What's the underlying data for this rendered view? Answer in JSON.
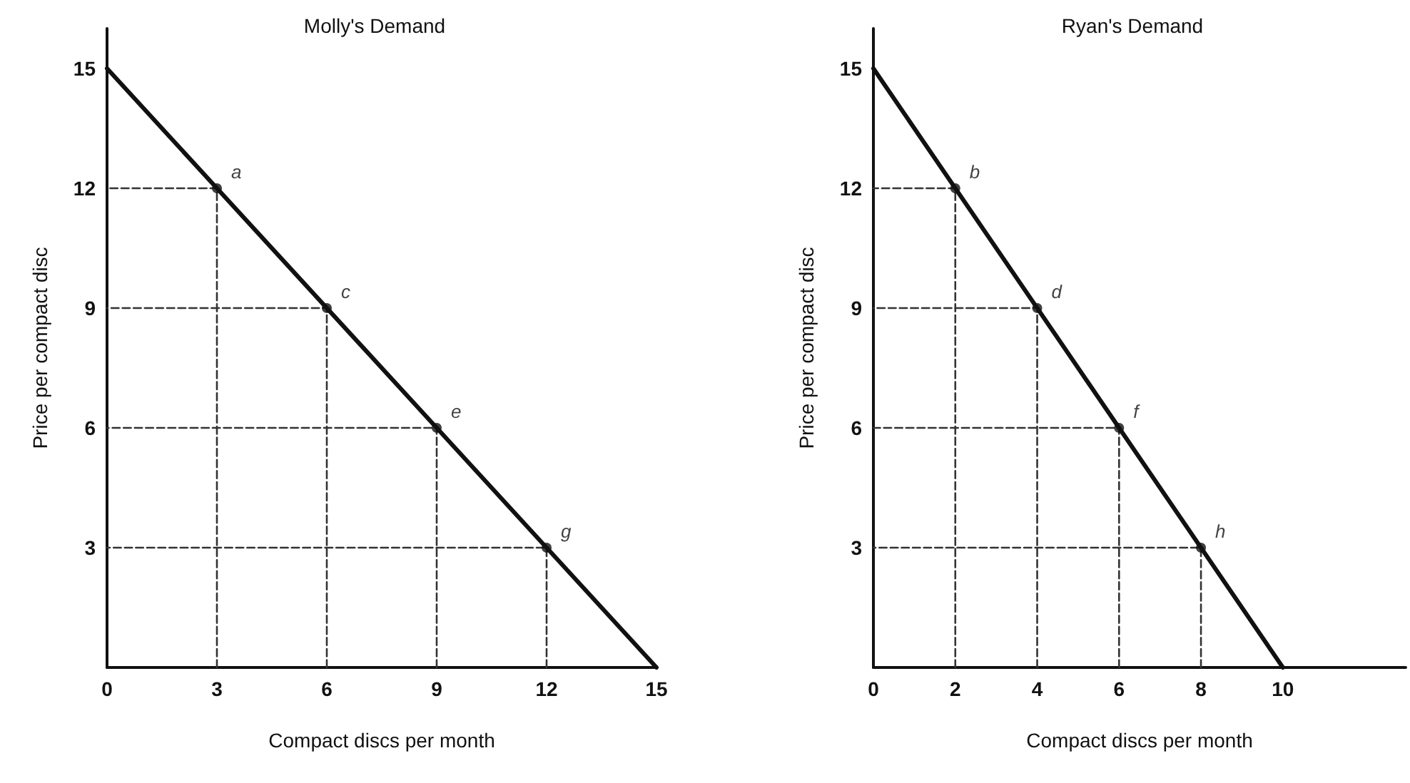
{
  "chart_data": [
    {
      "type": "line",
      "title": "Molly's Demand",
      "xlabel": "Compact discs per month",
      "ylabel": "Price per compact disc",
      "xlim": [
        0,
        15
      ],
      "ylim": [
        0,
        16
      ],
      "xticks": [
        0,
        3,
        6,
        9,
        12,
        15
      ],
      "yticks": [
        3,
        6,
        9,
        12,
        15
      ],
      "grid": false,
      "marker": "none",
      "series": [
        {
          "color": "#111111",
          "x": [
            0,
            15
          ],
          "values": [
            15,
            0
          ]
        },
        {
          "color": "#333333",
          "line_style": "dashed",
          "x": [
            3,
            3,
            0
          ],
          "values": [
            0,
            12,
            12
          ]
        },
        {
          "color": "#333333",
          "line_style": "dashed",
          "x": [
            6,
            6,
            0
          ],
          "values": [
            0,
            9,
            9
          ]
        },
        {
          "color": "#333333",
          "line_style": "dashed",
          "x": [
            9,
            9,
            0
          ],
          "values": [
            0,
            6,
            6
          ]
        },
        {
          "color": "#333333",
          "line_style": "dashed",
          "x": [
            12,
            12,
            0
          ],
          "values": [
            0,
            3,
            3
          ]
        },
        {
          "type": "scatter",
          "color": "#111111",
          "marker": "circle",
          "x": [
            3,
            6,
            9,
            12
          ],
          "values": [
            12,
            9,
            6,
            3
          ]
        }
      ],
      "annotations": [
        {
          "text": "a",
          "x": 3,
          "y": 12
        },
        {
          "text": "c",
          "x": 6,
          "y": 9
        },
        {
          "text": "e",
          "x": 9,
          "y": 6
        },
        {
          "text": "g",
          "x": 12,
          "y": 3
        }
      ]
    },
    {
      "type": "line",
      "title": "Ryan's Demand",
      "xlabel": "Compact discs per month",
      "ylabel": "Price per compact disc",
      "xlim": [
        0,
        13
      ],
      "ylim": [
        0,
        16
      ],
      "xticks": [
        0,
        2,
        4,
        6,
        8,
        10
      ],
      "yticks": [
        3,
        6,
        9,
        12,
        15
      ],
      "grid": false,
      "marker": "none",
      "series": [
        {
          "color": "#111111",
          "x": [
            0,
            10
          ],
          "values": [
            15,
            0
          ]
        },
        {
          "color": "#333333",
          "line_style": "dashed",
          "x": [
            2,
            2,
            0
          ],
          "values": [
            0,
            12,
            12
          ]
        },
        {
          "color": "#333333",
          "line_style": "dashed",
          "x": [
            4,
            4,
            0
          ],
          "values": [
            0,
            9,
            9
          ]
        },
        {
          "color": "#333333",
          "line_style": "dashed",
          "x": [
            6,
            6,
            0
          ],
          "values": [
            0,
            6,
            6
          ]
        },
        {
          "color": "#333333",
          "line_style": "dashed",
          "x": [
            8,
            8,
            0
          ],
          "values": [
            0,
            3,
            3
          ]
        },
        {
          "type": "scatter",
          "color": "#111111",
          "marker": "circle",
          "x": [
            2,
            4,
            6,
            8
          ],
          "values": [
            12,
            9,
            6,
            3
          ]
        }
      ],
      "annotations": [
        {
          "text": "b",
          "x": 2,
          "y": 12
        },
        {
          "text": "d",
          "x": 4,
          "y": 9
        },
        {
          "text": "f",
          "x": 6,
          "y": 6
        },
        {
          "text": "h",
          "x": 8,
          "y": 3
        }
      ]
    }
  ]
}
